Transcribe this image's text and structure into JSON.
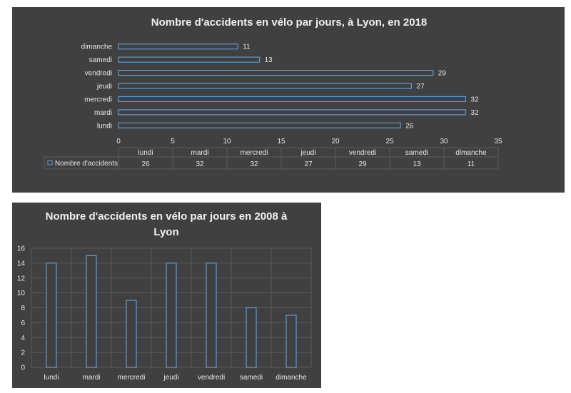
{
  "chart_data": [
    {
      "type": "bar",
      "orientation": "horizontal",
      "title": "Nombre d'accidents en vélo par jours, à Lyon,  en 2018",
      "categories": [
        "lundi",
        "mardi",
        "mercredi",
        "jeudi",
        "vendredi",
        "samedi",
        "dimanche"
      ],
      "series": [
        {
          "name": "Nombre d'accidents",
          "values": [
            26,
            32,
            32,
            27,
            29,
            13,
            11
          ]
        }
      ],
      "xlim": [
        0,
        35
      ],
      "xticks": [
        0,
        5,
        10,
        15,
        20,
        25,
        30,
        35
      ],
      "data_labels": true,
      "data_table": true,
      "colors": {
        "background": "#404040",
        "bar_fill": "#3f3f3f",
        "bar_stroke": "#5b9bd5",
        "text": "#e6e6e6",
        "grid": "#5a5a5a"
      }
    },
    {
      "type": "bar",
      "orientation": "vertical",
      "title": [
        "Nombre d'accidents en vélo par jours en 2008 à",
        "Lyon"
      ],
      "categories": [
        "lundi",
        "mardi",
        "mercredi",
        "jeudi",
        "vendredi",
        "samedi",
        "dimanche"
      ],
      "series": [
        {
          "name": "Nombre d'accidents",
          "values": [
            14,
            15,
            9,
            14,
            14,
            8,
            7
          ]
        }
      ],
      "ylim": [
        0,
        16
      ],
      "yticks": [
        0,
        2,
        4,
        6,
        8,
        10,
        12,
        14,
        16
      ],
      "grid": true,
      "colors": {
        "background": "#404040",
        "bar_fill": "#3f3f3f",
        "bar_stroke": "#5b9bd5",
        "text": "#e6e6e6",
        "grid": "#5a5a5a"
      }
    }
  ]
}
